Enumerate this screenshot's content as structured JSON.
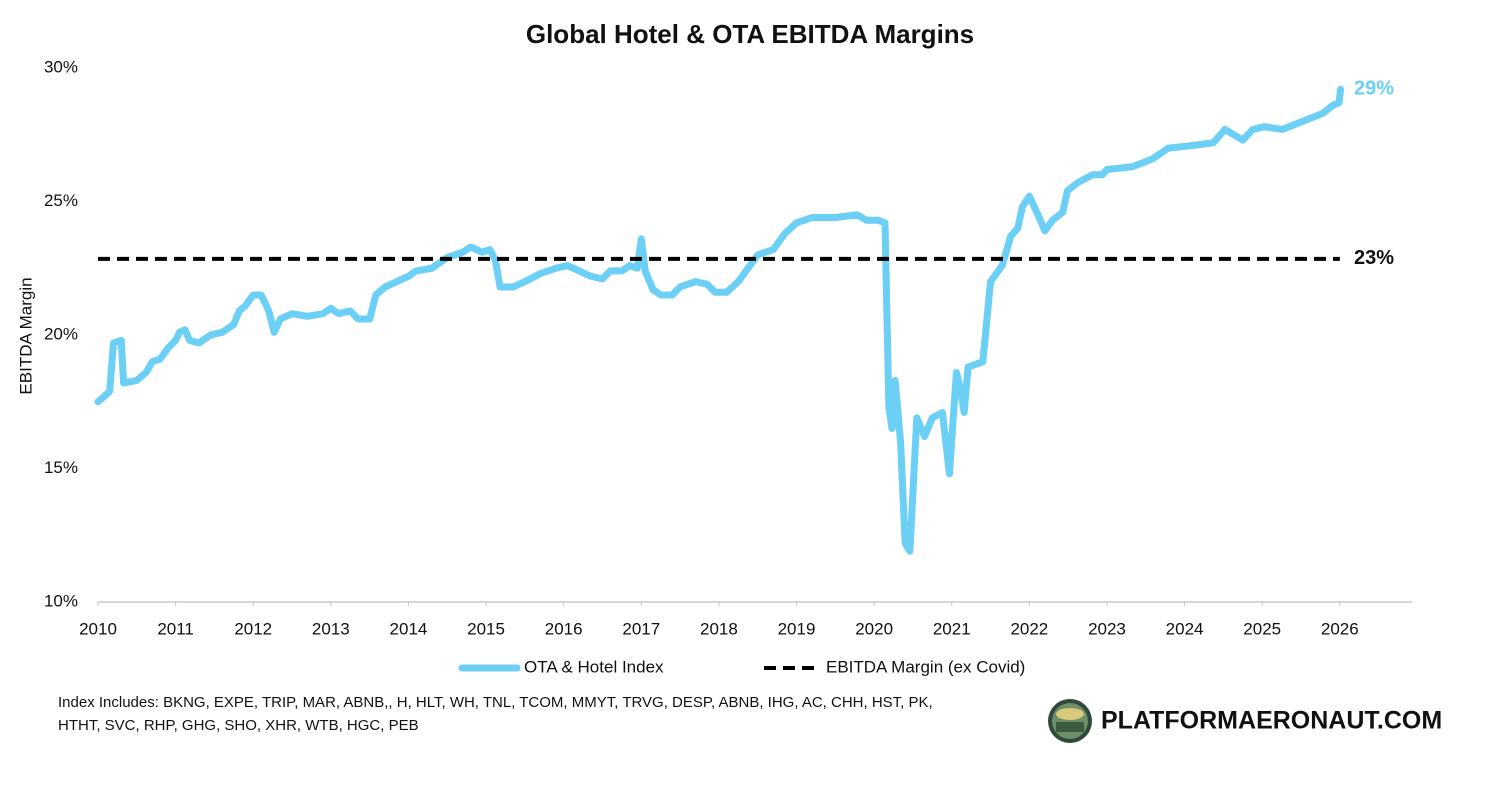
{
  "chart_data": {
    "type": "line",
    "title": "Global Hotel & OTA EBITDA Margins",
    "ylabel": "EBITDA Margin",
    "xlim": [
      2010,
      2026.93
    ],
    "xticks": [
      2010,
      2011,
      2012,
      2013,
      2014,
      2015,
      2016,
      2017,
      2018,
      2019,
      2020,
      2021,
      2022,
      2023,
      2024,
      2025,
      2026
    ],
    "ylim": [
      10,
      30
    ],
    "yticks": [
      {
        "value": 10,
        "label": "10%"
      },
      {
        "value": 15,
        "label": "15%"
      },
      {
        "value": 20,
        "label": "20%"
      },
      {
        "value": 25,
        "label": "25%"
      },
      {
        "value": 30,
        "label": "30%"
      }
    ],
    "grid": false,
    "legend": "bottom",
    "series": [
      {
        "name": "OTA & Hotel Index",
        "color": "#6ccff6",
        "style": "solid",
        "x": [
          2010.0,
          2010.08,
          2010.15,
          2010.2,
          2010.3,
          2010.33,
          2010.5,
          2010.62,
          2010.7,
          2010.8,
          2010.9,
          2011.0,
          2011.05,
          2011.12,
          2011.18,
          2011.3,
          2011.45,
          2011.6,
          2011.75,
          2011.82,
          2011.9,
          2012.0,
          2012.1,
          2012.17,
          2012.2,
          2012.27,
          2012.35,
          2012.5,
          2012.7,
          2012.9,
          2013.0,
          2013.1,
          2013.25,
          2013.35,
          2013.5,
          2013.58,
          2013.7,
          2013.85,
          2014.0,
          2014.1,
          2014.3,
          2014.5,
          2014.7,
          2014.8,
          2014.95,
          2015.05,
          2015.12,
          2015.18,
          2015.35,
          2015.5,
          2015.7,
          2015.9,
          2016.05,
          2016.2,
          2016.35,
          2016.5,
          2016.6,
          2016.75,
          2016.85,
          2016.95,
          2017.0,
          2017.05,
          2017.15,
          2017.25,
          2017.4,
          2017.5,
          2017.7,
          2017.85,
          2017.95,
          2018.1,
          2018.25,
          2018.4,
          2018.5,
          2018.7,
          2018.85,
          2019.0,
          2019.2,
          2019.5,
          2019.78,
          2019.9,
          2020.05,
          2020.14,
          2020.19,
          2020.23,
          2020.27,
          2020.34,
          2020.4,
          2020.46,
          2020.55,
          2020.65,
          2020.75,
          2020.88,
          2020.97,
          2021.06,
          2021.11,
          2021.16,
          2021.21,
          2021.4,
          2021.5,
          2021.65,
          2021.76,
          2021.85,
          2021.91,
          2022.0,
          2022.11,
          2022.2,
          2022.3,
          2022.43,
          2022.49,
          2022.62,
          2022.81,
          2022.94,
          2023.0,
          2023.33,
          2023.59,
          2023.79,
          2024.11,
          2024.37,
          2024.52,
          2024.75,
          2024.88,
          2025.03,
          2025.26,
          2025.52,
          2025.78,
          2025.91,
          2025.99,
          2026.01
        ],
        "values": [
          17.5,
          17.7,
          17.9,
          19.7,
          19.8,
          18.2,
          18.3,
          18.6,
          19.0,
          19.1,
          19.5,
          19.8,
          20.1,
          20.2,
          19.8,
          19.7,
          20.0,
          20.1,
          20.4,
          20.9,
          21.1,
          21.5,
          21.5,
          21.1,
          20.9,
          20.1,
          20.6,
          20.8,
          20.7,
          20.8,
          21.0,
          20.8,
          20.9,
          20.6,
          20.6,
          21.5,
          21.8,
          22.0,
          22.2,
          22.4,
          22.5,
          22.9,
          23.1,
          23.3,
          23.1,
          23.2,
          22.8,
          21.8,
          21.8,
          22.0,
          22.3,
          22.5,
          22.6,
          22.4,
          22.2,
          22.1,
          22.4,
          22.4,
          22.6,
          22.5,
          23.6,
          22.4,
          21.7,
          21.5,
          21.5,
          21.8,
          22.0,
          21.9,
          21.6,
          21.6,
          22.0,
          22.6,
          23.0,
          23.2,
          23.8,
          24.2,
          24.4,
          24.4,
          24.5,
          24.3,
          24.3,
          24.2,
          17.3,
          16.5,
          18.3,
          16.0,
          12.2,
          11.9,
          16.9,
          16.2,
          16.9,
          17.1,
          14.8,
          18.6,
          18.0,
          17.1,
          18.8,
          19.0,
          22.0,
          22.6,
          23.7,
          24.0,
          24.8,
          25.2,
          24.5,
          23.9,
          24.3,
          24.6,
          25.4,
          25.7,
          26.0,
          26.0,
          26.2,
          26.3,
          26.6,
          27.0,
          27.1,
          27.2,
          27.7,
          27.3,
          27.7,
          27.8,
          27.7,
          28.0,
          28.3,
          28.6,
          28.7,
          29.2
        ],
        "value_labels": [
          null,
          null,
          null,
          null,
          null,
          null,
          null,
          null,
          null,
          null,
          null,
          null,
          null,
          null,
          null,
          null,
          null,
          null,
          null,
          null,
          null,
          null,
          null,
          null,
          null,
          null,
          null,
          null,
          null,
          null,
          null,
          null,
          null,
          null,
          null,
          null,
          null,
          null,
          null,
          null,
          null,
          null,
          null,
          null,
          null,
          null,
          null,
          null,
          null,
          null,
          null,
          null,
          null,
          null,
          null,
          null,
          null,
          null,
          null,
          null,
          null,
          null,
          null,
          null,
          null,
          null,
          null,
          null,
          null,
          null,
          null,
          null,
          null,
          null,
          null,
          null,
          null,
          null,
          null,
          null,
          null,
          null,
          null,
          null,
          null,
          null,
          null,
          null,
          null,
          null,
          null,
          null,
          null,
          null,
          null,
          null,
          null,
          null,
          null,
          null,
          null,
          null,
          null,
          null,
          null,
          null,
          null,
          null,
          null,
          null,
          null,
          null,
          null,
          null,
          null,
          null,
          null,
          null,
          null,
          null,
          null,
          null,
          null,
          null,
          null,
          null,
          null,
          "29%"
        ]
      },
      {
        "name": "EBITDA Margin (ex Covid)",
        "color": "#000000",
        "style": "dashed",
        "x": [
          2010,
          2026
        ],
        "values": [
          22.85,
          22.85
        ],
        "value_labels": [
          null,
          "23%"
        ]
      }
    ],
    "notes": [
      "Index Includes: BKNG, EXPE, TRIP, MAR, ABNB,, H, HLT, WH, TNL, TCOM, MMYT, TRVG, DESP, ABNB, IHG, AC, CHH, HST, PK,",
      "HTHT, SVC, RHP, GHG, SHO, XHR, WTB, HGC, PEB"
    ],
    "brand": "PLATFORMAERONAUT.COM"
  }
}
